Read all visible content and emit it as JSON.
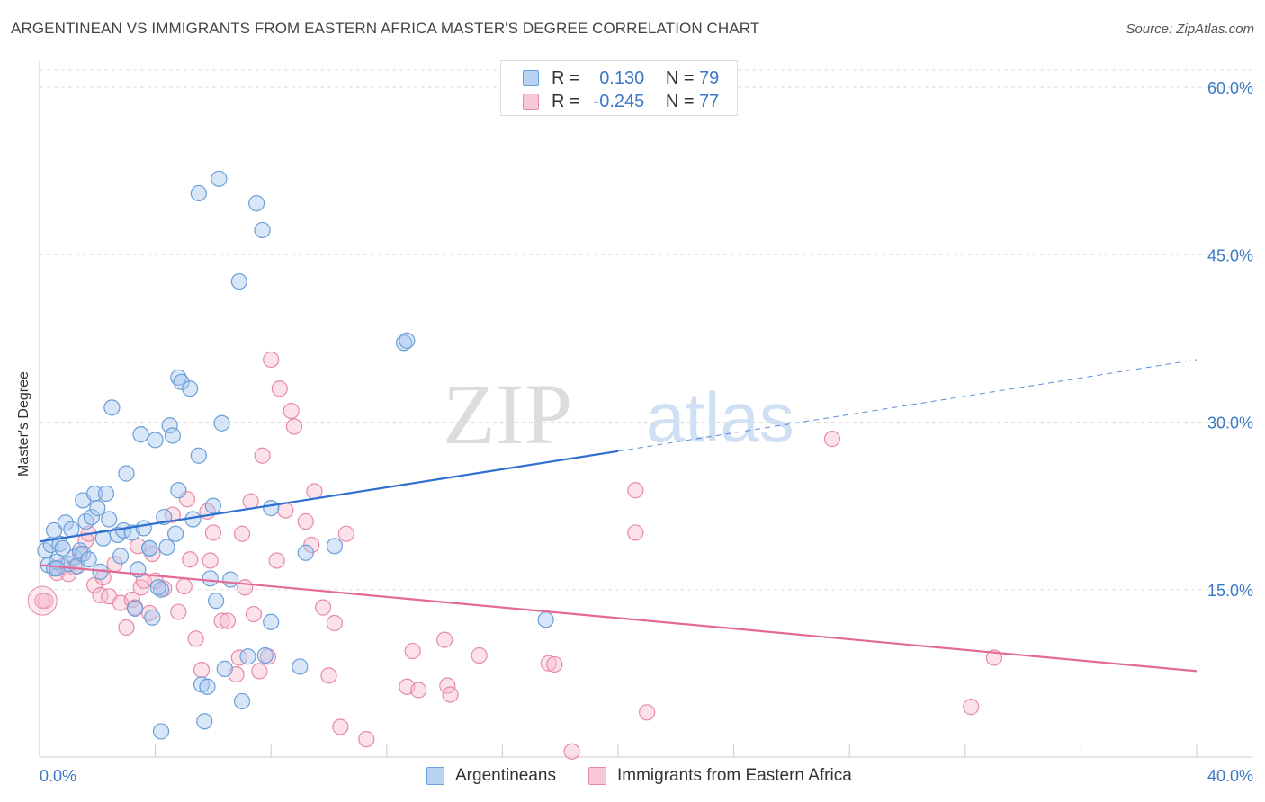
{
  "header": {
    "title": "ARGENTINEAN VS IMMIGRANTS FROM EASTERN AFRICA MASTER'S DEGREE CORRELATION CHART",
    "source": "Source: ZipAtlas.com"
  },
  "watermark": {
    "zip": "ZIP",
    "atlas": "atlas"
  },
  "colors": {
    "blue_fill": "#a9c8ef",
    "blue_stroke": "#6a9fd8",
    "blue_line": "#2f6fd0",
    "pink_fill": "#f6bccd",
    "pink_stroke": "#e78aa8",
    "pink_line": "#e36a94",
    "axis_label": "#3b78c4",
    "grid": "#dddddd"
  },
  "legend": {
    "rows": [
      {
        "r_label": "R =",
        "r_value": "0.130",
        "n_label": "N =",
        "n_value": "79",
        "color": "blue"
      },
      {
        "r_label": "R =",
        "r_value": "-0.245",
        "n_label": "N =",
        "n_value": "77",
        "color": "pink"
      }
    ]
  },
  "chart_data": {
    "type": "scatter",
    "title": "ARGENTINEAN VS IMMIGRANTS FROM EASTERN AFRICA MASTER'S DEGREE CORRELATION CHART",
    "xlabel": "",
    "ylabel": "Master's Degree",
    "xlim": [
      0,
      40
    ],
    "ylim": [
      0,
      62.5
    ],
    "x_tick_labels": [
      "0.0%",
      "40.0%"
    ],
    "y_ticks": [
      15,
      30,
      45,
      60
    ],
    "y_tick_labels": [
      "15.0%",
      "30.0%",
      "45.0%",
      "60.0%"
    ],
    "series": [
      {
        "name": "Argentineans",
        "color": "blue",
        "trend": {
          "x0": 0,
          "y0": 19.3,
          "x1": 20,
          "y1": 27.4,
          "dashed_to_x": 40,
          "dashed_to_y": 35.6
        },
        "points": [
          [
            0.2,
            18.5
          ],
          [
            0.3,
            17.2
          ],
          [
            0.4,
            19.0
          ],
          [
            0.5,
            16.9
          ],
          [
            0.5,
            20.3
          ],
          [
            0.6,
            17.5
          ],
          [
            0.7,
            19.1
          ],
          [
            0.8,
            18.7
          ],
          [
            0.9,
            21.0
          ],
          [
            1.0,
            17.3
          ],
          [
            1.1,
            20.4
          ],
          [
            1.2,
            17.9
          ],
          [
            1.3,
            17.1
          ],
          [
            1.4,
            18.5
          ],
          [
            1.5,
            23.0
          ],
          [
            1.5,
            18.2
          ],
          [
            1.6,
            21.1
          ],
          [
            1.7,
            17.7
          ],
          [
            1.8,
            21.5
          ],
          [
            1.9,
            23.6
          ],
          [
            2.0,
            22.3
          ],
          [
            2.1,
            16.6
          ],
          [
            2.2,
            19.6
          ],
          [
            2.3,
            23.6
          ],
          [
            2.4,
            21.3
          ],
          [
            2.5,
            31.3
          ],
          [
            2.7,
            19.9
          ],
          [
            2.8,
            18.0
          ],
          [
            2.9,
            20.3
          ],
          [
            3.0,
            25.4
          ],
          [
            3.2,
            20.1
          ],
          [
            3.3,
            13.3
          ],
          [
            3.4,
            16.8
          ],
          [
            3.5,
            28.9
          ],
          [
            3.6,
            20.5
          ],
          [
            3.8,
            18.7
          ],
          [
            3.9,
            12.5
          ],
          [
            4.0,
            28.4
          ],
          [
            4.2,
            15.0
          ],
          [
            4.3,
            21.5
          ],
          [
            4.4,
            18.8
          ],
          [
            4.5,
            29.7
          ],
          [
            4.6,
            28.8
          ],
          [
            4.7,
            20.0
          ],
          [
            4.8,
            34.0
          ],
          [
            4.8,
            23.9
          ],
          [
            4.9,
            33.6
          ],
          [
            5.2,
            33.0
          ],
          [
            5.3,
            21.3
          ],
          [
            5.5,
            50.5
          ],
          [
            5.5,
            27.0
          ],
          [
            5.6,
            6.5
          ],
          [
            5.7,
            3.2
          ],
          [
            5.8,
            6.3
          ],
          [
            5.9,
            16.0
          ],
          [
            6.0,
            22.5
          ],
          [
            6.1,
            14.0
          ],
          [
            6.2,
            51.8
          ],
          [
            6.3,
            29.9
          ],
          [
            6.4,
            7.9
          ],
          [
            6.6,
            15.9
          ],
          [
            6.9,
            42.6
          ],
          [
            7.0,
            5.0
          ],
          [
            7.2,
            9.0
          ],
          [
            7.5,
            49.6
          ],
          [
            7.7,
            47.2
          ],
          [
            7.8,
            9.1
          ],
          [
            8.0,
            22.3
          ],
          [
            8.0,
            12.1
          ],
          [
            9.0,
            8.1
          ],
          [
            9.2,
            18.3
          ],
          [
            10.2,
            18.9
          ],
          [
            12.6,
            37.1
          ],
          [
            12.7,
            37.3
          ],
          [
            17.5,
            12.3
          ],
          [
            4.2,
            2.3
          ],
          [
            0.6,
            16.9
          ],
          [
            3.8,
            18.7
          ],
          [
            4.1,
            15.2
          ]
        ]
      },
      {
        "name": "Immigrants from Eastern Africa",
        "color": "pink",
        "trend": {
          "x0": 0,
          "y0": 17.2,
          "x1": 40,
          "y1": 7.7
        },
        "points": [
          [
            0.2,
            14.0
          ],
          [
            0.6,
            16.5
          ],
          [
            0.8,
            17.1
          ],
          [
            1.0,
            16.4
          ],
          [
            1.2,
            17.0
          ],
          [
            1.4,
            18.2
          ],
          [
            1.6,
            19.4
          ],
          [
            1.7,
            20.0
          ],
          [
            1.9,
            15.4
          ],
          [
            2.1,
            14.5
          ],
          [
            2.2,
            16.1
          ],
          [
            2.4,
            14.4
          ],
          [
            2.6,
            17.3
          ],
          [
            2.8,
            13.8
          ],
          [
            3.0,
            11.6
          ],
          [
            3.2,
            14.1
          ],
          [
            3.3,
            13.4
          ],
          [
            3.4,
            18.9
          ],
          [
            3.5,
            15.2
          ],
          [
            3.6,
            15.8
          ],
          [
            3.8,
            12.9
          ],
          [
            3.9,
            18.2
          ],
          [
            4.0,
            15.8
          ],
          [
            4.3,
            15.1
          ],
          [
            4.6,
            21.7
          ],
          [
            4.8,
            13.0
          ],
          [
            5.0,
            15.3
          ],
          [
            5.1,
            23.1
          ],
          [
            5.2,
            17.7
          ],
          [
            5.4,
            10.6
          ],
          [
            5.6,
            7.8
          ],
          [
            5.8,
            22.0
          ],
          [
            5.9,
            17.6
          ],
          [
            6.0,
            20.1
          ],
          [
            6.3,
            12.2
          ],
          [
            6.5,
            12.2
          ],
          [
            6.8,
            7.4
          ],
          [
            6.9,
            8.9
          ],
          [
            7.0,
            20.0
          ],
          [
            7.1,
            15.2
          ],
          [
            7.3,
            22.9
          ],
          [
            7.4,
            12.8
          ],
          [
            7.6,
            7.7
          ],
          [
            7.7,
            27.0
          ],
          [
            7.9,
            9.0
          ],
          [
            8.0,
            35.6
          ],
          [
            8.2,
            17.6
          ],
          [
            8.3,
            33.0
          ],
          [
            8.5,
            22.1
          ],
          [
            8.7,
            31.0
          ],
          [
            8.8,
            29.6
          ],
          [
            9.2,
            21.1
          ],
          [
            9.4,
            19.0
          ],
          [
            9.5,
            23.8
          ],
          [
            9.8,
            13.4
          ],
          [
            10.0,
            7.3
          ],
          [
            10.2,
            12.0
          ],
          [
            10.4,
            2.7
          ],
          [
            10.6,
            20.0
          ],
          [
            11.3,
            1.6
          ],
          [
            12.7,
            6.3
          ],
          [
            12.9,
            9.5
          ],
          [
            13.1,
            6.0
          ],
          [
            14.0,
            10.5
          ],
          [
            14.1,
            6.4
          ],
          [
            14.2,
            5.6
          ],
          [
            15.2,
            9.1
          ],
          [
            17.6,
            8.4
          ],
          [
            17.8,
            8.3
          ],
          [
            18.4,
            0.5
          ],
          [
            20.6,
            23.9
          ],
          [
            20.6,
            20.1
          ],
          [
            21.0,
            4.0
          ],
          [
            27.4,
            28.5
          ],
          [
            32.2,
            4.5
          ],
          [
            33.0,
            8.9
          ],
          [
            0.1,
            14.0
          ]
        ]
      }
    ]
  },
  "bottom_legend": {
    "items": [
      {
        "label": "Argentineans",
        "color": "blue"
      },
      {
        "label": "Immigrants from Eastern Africa",
        "color": "pink"
      }
    ]
  }
}
